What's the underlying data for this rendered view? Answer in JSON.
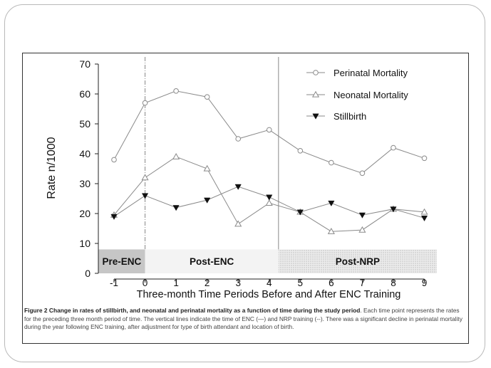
{
  "chart_data": {
    "type": "line",
    "title": "",
    "xlabel": "Three-month Time Periods Before and After ENC Training",
    "ylabel": "Rate n/1000",
    "x": [
      -1,
      0,
      1,
      2,
      3,
      4,
      5,
      6,
      7,
      8,
      9
    ],
    "x_tick_labels": [
      "-1",
      "0",
      "1",
      "2",
      "3",
      "4",
      "5",
      "6",
      "7",
      "8",
      "9"
    ],
    "ylim": [
      0,
      70
    ],
    "y_ticks": [
      0,
      10,
      20,
      30,
      40,
      50,
      60,
      70
    ],
    "series": [
      {
        "name": "Perinatal Mortality",
        "marker": "circle",
        "values": [
          38,
          57,
          61,
          59,
          45,
          48,
          41,
          37,
          33.5,
          42,
          38.5
        ]
      },
      {
        "name": "Neonatal Mortality",
        "marker": "triangle-up",
        "values": [
          19.5,
          32,
          39,
          35,
          16.5,
          23.5,
          20.5,
          14,
          14.5,
          21.5,
          20.5
        ]
      },
      {
        "name": "Stillbirth",
        "marker": "triangle-down-filled",
        "values": [
          19,
          26,
          22,
          24.5,
          29,
          25.5,
          20.5,
          23.5,
          19.5,
          21.5,
          18.5
        ]
      }
    ],
    "legend_position": "top-right",
    "vertical_lines": [
      {
        "x": 0,
        "style": "dash-dot",
        "meaning": "NRP training"
      },
      {
        "x": 4.3,
        "style": "solid",
        "meaning": "ENC"
      }
    ],
    "phases": [
      {
        "label": "Pre-ENC",
        "from": -1.5,
        "to": 0,
        "fill": "#c6c6c6",
        "pattern": "solid"
      },
      {
        "label": "Post-ENC",
        "from": 0,
        "to": 4.3,
        "fill": "#f3f3f3",
        "pattern": "solid"
      },
      {
        "label": "Post-NRP",
        "from": 4.3,
        "to": 9.4,
        "fill": "#e6e6e6",
        "pattern": "dots"
      }
    ],
    "phase_band_range": [
      0,
      8
    ]
  },
  "caption": {
    "bold": "Figure 2 Change in rates of stillbirth, and neonatal and perinatal mortality as a function of time during the study period",
    "text": ". Each time point represents the rates for the preceding three month period of time. The vertical lines indicate the time of ENC (—) and NRP training (--). There was a significant decline in perinatal mortality during the year following ENC training, after adjustment for type of birth attendant and location of birth."
  },
  "colors": {
    "line": "#8a8a8a",
    "axis": "#222222",
    "text": "#111111"
  }
}
